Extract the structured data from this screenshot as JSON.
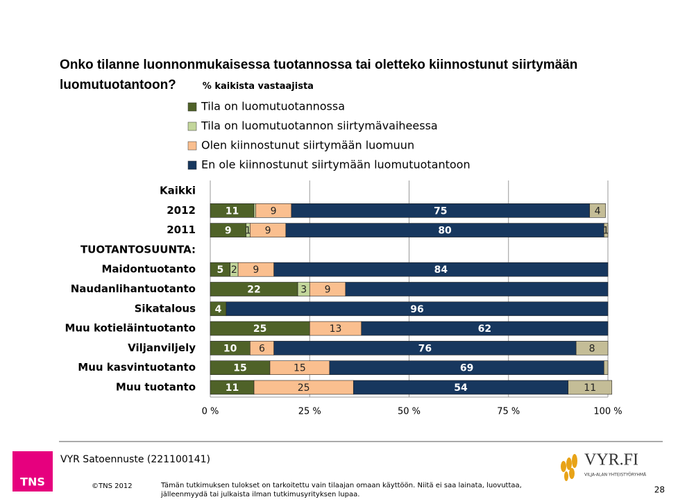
{
  "chart_data": {
    "type": "stacked_barh",
    "title": "Onko tilanne luonnonmukaisessa tuotannossa tai oletteko kiinnostunut siirtymään luomutuotantoon?",
    "subtitle": "% kaikista vastaajista",
    "categories": [
      "Kaikki",
      "2012",
      "2011",
      "TUOTANTOSUUNTA:",
      "Maidontuotanto",
      "Naudanlihantuotanto",
      "Sikatalous",
      "Muu kotieläintuotanto",
      "Viljanviljely",
      "Muu kasvintuotanto",
      "Muu tuotanto"
    ],
    "series": [
      {
        "name": "Tila on luomutuotannossa",
        "color": "#4f6228",
        "values": [
          null,
          11,
          9,
          null,
          5,
          22,
          4,
          25,
          10,
          15,
          11
        ],
        "value_labels": [
          null,
          "11",
          "9",
          null,
          "5",
          "22",
          "4",
          "25",
          "10",
          "15",
          "11"
        ]
      },
      {
        "name": "Tila on luomutuotannon siirtymävaiheessa",
        "color": "#c3d69b",
        "values": [
          null,
          0.4,
          1,
          null,
          2,
          3,
          null,
          null,
          null,
          null,
          null
        ],
        "value_labels": [
          null,
          null,
          "1",
          null,
          "2",
          "3",
          null,
          null,
          null,
          null,
          null
        ]
      },
      {
        "name": "Olen kiinnostunut siirtymään luomuun",
        "color": "#fabf8f",
        "values": [
          null,
          9,
          9,
          null,
          9,
          9,
          null,
          13,
          6,
          15,
          25
        ],
        "value_labels": [
          null,
          "9",
          "9",
          null,
          "9",
          "9",
          null,
          "13",
          "6",
          "15",
          "25"
        ]
      },
      {
        "name": "En ole kiinnostunut siirtymään luomutuotantoon",
        "color": "#17375e",
        "values": [
          null,
          75,
          80,
          null,
          84,
          66,
          96,
          62,
          76,
          69,
          54
        ],
        "value_labels": [
          null,
          "75",
          "80",
          null,
          "84",
          null,
          "96",
          "62",
          "76",
          "69",
          "54"
        ]
      },
      {
        "color": "#c4bd97",
        "values": [
          null,
          4,
          1,
          null,
          null,
          null,
          null,
          null,
          8,
          1,
          11
        ],
        "value_labels": [
          null,
          "4",
          "1",
          null,
          null,
          null,
          null,
          null,
          "8",
          null,
          "11"
        ]
      }
    ],
    "xlim": [
      0,
      100
    ],
    "xticks": [
      {
        "value": 0,
        "label": "0 %"
      },
      {
        "value": 25,
        "label": "25 %"
      },
      {
        "value": 50,
        "label": "50 %"
      },
      {
        "value": 75,
        "label": "75 %"
      },
      {
        "value": 100,
        "label": "100 %"
      }
    ],
    "grid": true
  },
  "footer": {
    "logo": "TNS",
    "project": "VYR Satoennuste (221100141)",
    "copyright": "©TNS 2012",
    "disclaimer": "Tämän tutkimuksen tulokset on tarkoitettu vain tilaajan omaan käyttöön. Niitä ei saa  lainata, luovuttaa, jälleenmyydä tai julkaista ilman tutkimusyrityksen lupaa.",
    "brand": "VYR.FI",
    "brand_tagline": "VILJA-ALAN YHTEISTYÖRYHMÄ",
    "page": "28"
  }
}
